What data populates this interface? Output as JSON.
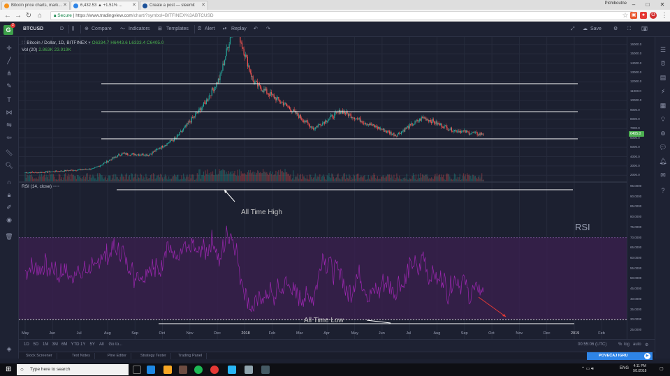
{
  "browser": {
    "tabs": [
      {
        "label": "Bitcoin price charts, mark...",
        "favicon_color": "#f6921a"
      },
      {
        "label": "6,432.53 ▲ +1.51% ...",
        "favicon_color": "#2e84e6"
      },
      {
        "label": "Create a post — steemit",
        "favicon_color": "#1a5099"
      }
    ],
    "profile_name": "Pichiboutne",
    "url": {
      "secure_label": "Secure",
      "host": "https://www.tradingview.com",
      "path": "/chart/?symbol=BITFINEX%3ABTCUSD"
    },
    "window_controls": [
      "–",
      "□",
      "✕"
    ]
  },
  "toolbar": {
    "symbol": "BTCUSD",
    "interval": "D",
    "compare_label": "Compare",
    "indicators_label": "Indicators",
    "templates_label": "Templates",
    "alert_label": "Alert",
    "replay_label": "Replay",
    "save_label": "Save"
  },
  "legend": {
    "title": "Bitcoin / Dollar, 1D, BITFINEX",
    "ohlc": "O6334.7 H6443.6 L6333.4 C6405.0",
    "volume_label": "Vol (20)",
    "volume_values": "2.863K  23.919K",
    "rsi_label": "RSI (14, close)"
  },
  "annotations": {
    "ath": "All Time High",
    "atl": "All Time Low",
    "rsi": "RSI"
  },
  "price_axis": {
    "ticks": [
      "16000.0",
      "15000.0",
      "14000.0",
      "13000.0",
      "12000.0",
      "11000.0",
      "10000.0",
      "9000.0",
      "8000.0",
      "7000.0",
      "6000.0",
      "5000.0",
      "4000.0",
      "3000.0",
      "2000.0"
    ],
    "current_price": "6405.0",
    "current_price_color": "#4caf50"
  },
  "rsi_axis": {
    "ticks": [
      "95.0000",
      "90.0000",
      "85.0000",
      "80.0000",
      "75.0000",
      "70.0000",
      "65.0000",
      "60.0000",
      "55.0000",
      "50.0000",
      "45.0000",
      "40.0000",
      "35.0000",
      "30.0000",
      "25.0000"
    ]
  },
  "time_axis": [
    "May",
    "Jun",
    "Jul",
    "Aug",
    "Sep",
    "Oct",
    "Nov",
    "Dec",
    "2018",
    "Feb",
    "Mar",
    "Apr",
    "May",
    "Jun",
    "Jul",
    "Aug",
    "Sep",
    "Oct",
    "Nov",
    "Dec",
    "2019",
    "Feb"
  ],
  "bottom": {
    "ranges": [
      "1D",
      "5D",
      "1M",
      "3M",
      "6M",
      "YTD",
      "1Y",
      "5Y",
      "All",
      "Go to..."
    ],
    "clock": "00:55:06 (UTC)",
    "scale_buttons": [
      "%",
      "log",
      "auto"
    ]
  },
  "panels": [
    "Stock Screener",
    "Text Notes",
    "Pine Editor",
    "Strategy Tester",
    "Trading Panel"
  ],
  "premium_button": "POVEĆAJ IGRU",
  "taskbar": {
    "search_placeholder": "Type here to search",
    "language": "ENG",
    "time": "4:11 PM",
    "date": "9/1/2018"
  },
  "colors": {
    "bull": "#26a69a",
    "bear": "#ef5350",
    "rsi_line": "#9c27b0",
    "rsi_band": "#3a1f4e",
    "background": "#1c2030",
    "annotation": "#ffffff"
  },
  "chart_data": {
    "type": "line",
    "title": "Bitcoin / Dollar, 1D, BITFINEX",
    "xlabel": "",
    "ylabel": "",
    "series": [
      {
        "name": "",
        "x": [
          "2017-05",
          "2017-06",
          "2017-07",
          "2017-08",
          "2017-09",
          "2017-10",
          "2017-11",
          "2017-12",
          "2018-01",
          "2018-02",
          "2018-03",
          "2018-04",
          "2018-05",
          "2018-06",
          "2018-07",
          "2018-08",
          "2018-09"
        ],
        "values": [
          2300,
          2500,
          2700,
          4300,
          4200,
          6000,
          9500,
          14500,
          11500,
          9500,
          7000,
          8900,
          7500,
          6300,
          8200,
          6900,
          6405
        ]
      }
    ],
    "ylim": [
      1500,
      16500
    ],
    "rsi": {
      "ylim": [
        25,
        95
      ],
      "upper_band": 70,
      "lower_band": 30
    },
    "levels": [
      11800,
      8800,
      5900
    ],
    "grid": true
  }
}
